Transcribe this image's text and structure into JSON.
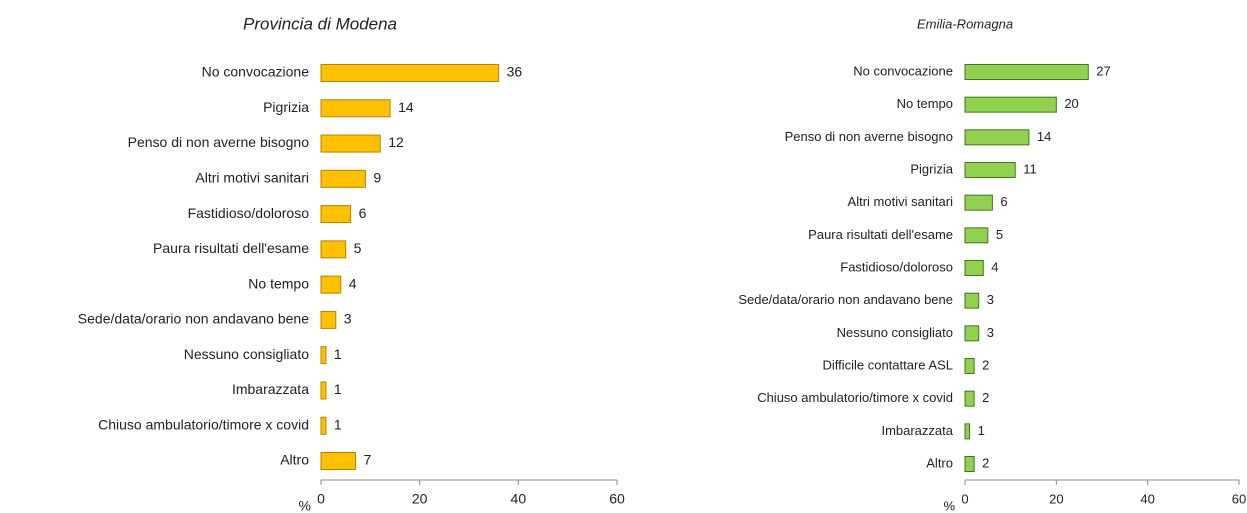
{
  "chart_data": [
    {
      "type": "bar",
      "orientation": "horizontal",
      "title": "Provincia di Modena",
      "categories": [
        "No convocazione",
        "Pigrizia",
        "Penso di non averne bisogno",
        "Altri motivi sanitari",
        "Fastidioso/doloroso",
        "Paura risultati dell'esame",
        "No tempo",
        "Sede/data/orario non andavano bene",
        "Nessuno consigliato",
        "Imbarazzata",
        "Chiuso ambulatorio/timore x covid",
        "Altro"
      ],
      "values": [
        36,
        14,
        12,
        9,
        6,
        5,
        4,
        3,
        1,
        1,
        1,
        7
      ],
      "color": "#FFC000",
      "edgecolor": "#B38600",
      "xlim": [
        0,
        60
      ],
      "xticks": [
        0,
        20,
        40,
        60
      ],
      "xlabel": "%"
    },
    {
      "type": "bar",
      "orientation": "horizontal",
      "title": "Emilia-Romagna",
      "categories": [
        "No convocazione",
        "No tempo",
        "Penso di non averne bisogno",
        "Pigrizia",
        "Altri motivi sanitari",
        "Paura risultati dell'esame",
        "Fastidioso/doloroso",
        "Sede/data/orario non andavano bene",
        "Nessuno consigliato",
        "Difficile contattare ASL",
        "Chiuso ambulatorio/timore x covid",
        "Imbarazzata",
        "Altro"
      ],
      "values": [
        27,
        20,
        14,
        11,
        6,
        5,
        4,
        3,
        3,
        2,
        2,
        1,
        2
      ],
      "color": "#92D050",
      "edgecolor": "#3F7A1F",
      "xlim": [
        0,
        60
      ],
      "xticks": [
        0,
        20,
        40,
        60
      ],
      "xlabel": "%"
    }
  ]
}
